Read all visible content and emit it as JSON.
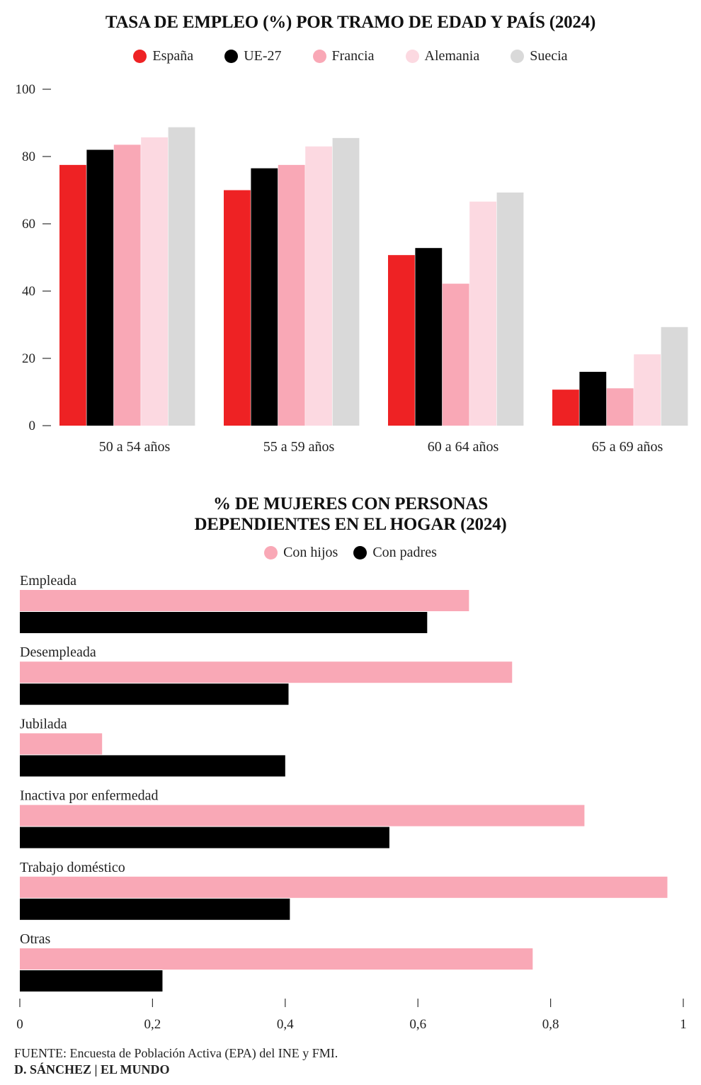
{
  "chart_data": [
    {
      "type": "bar",
      "title": "TASA DE EMPLEO (%) POR TRAMO DE EDAD Y PAÍS (2024)",
      "categories": [
        "50 a 54 años",
        "55 a 59 años",
        "60 a 64 años",
        "65 a 69 años"
      ],
      "series": [
        {
          "name": "España",
          "color": "#ee2224",
          "values": [
            77.5,
            70,
            50.7,
            10.7
          ]
        },
        {
          "name": "UE-27",
          "color": "#000000",
          "values": [
            82,
            76.5,
            52.8,
            16
          ]
        },
        {
          "name": "Francia",
          "color": "#f9a8b6",
          "values": [
            83.5,
            77.5,
            42.2,
            11.1
          ]
        },
        {
          "name": "Alemania",
          "color": "#fcd9e1",
          "values": [
            85.7,
            83,
            66.6,
            21.2
          ]
        },
        {
          "name": "Suecia",
          "color": "#d9d9d9",
          "values": [
            88.7,
            85.5,
            69.3,
            29.3
          ]
        }
      ],
      "ylim": [
        0,
        100
      ],
      "yticks": [
        "0",
        "20",
        "40",
        "60",
        "80",
        "100"
      ],
      "legend_position": "top-center",
      "grid": false
    },
    {
      "type": "bar",
      "orientation": "horizontal",
      "title_lines": [
        "% DE MUJERES CON PERSONAS",
        "DEPENDIENTES EN EL HOGAR (2024)"
      ],
      "categories": [
        "Empleada",
        "Desempleada",
        "Jubilada",
        "Inactiva por enfermedad",
        "Trabajo doméstico",
        "Otras"
      ],
      "series": [
        {
          "name": "Con hijos",
          "color": "#f9a8b6",
          "values": [
            0.677,
            0.742,
            0.124,
            0.851,
            0.976,
            0.773
          ]
        },
        {
          "name": "Con padres",
          "color": "#000000",
          "values": [
            0.614,
            0.405,
            0.4,
            0.557,
            0.407,
            0.215
          ]
        }
      ],
      "xlim": [
        0,
        1
      ],
      "xticks": [
        "0",
        "0,2",
        "0,4",
        "0,6",
        "0,8",
        "1"
      ],
      "legend_position": "top-center",
      "grid": false
    }
  ],
  "footer": {
    "source_label": "FUENTE:",
    "source_text": " Encuesta de Población Activa (EPA) del INE y FMI.",
    "credit": "D. SÁNCHEZ | EL MUNDO"
  }
}
